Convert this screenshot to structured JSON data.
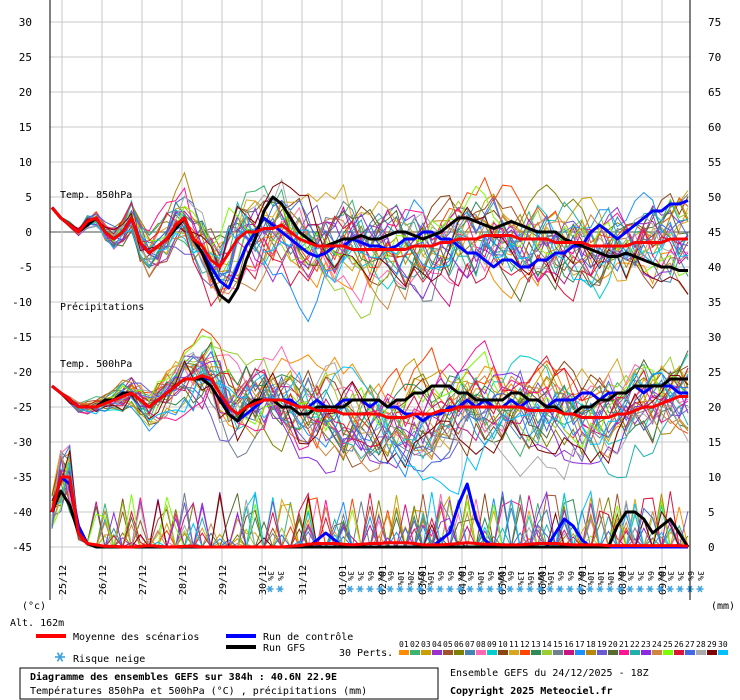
{
  "chart_data": {
    "type": "line",
    "left_axis": {
      "unit": "(°c)",
      "ticks": [
        30,
        25,
        20,
        15,
        10,
        5,
        0,
        -5,
        -10,
        -15,
        -20,
        -25,
        -30,
        -35,
        -40,
        -45
      ],
      "ylim": [
        -45,
        30
      ]
    },
    "right_axis": {
      "unit": "(mm)",
      "ticks": [
        75,
        70,
        65,
        60,
        55,
        50,
        45,
        40,
        35,
        30,
        25,
        20,
        15,
        10,
        5,
        0
      ],
      "ylim": [
        0,
        75
      ]
    },
    "x_ticks": [
      "25/12",
      "26/12",
      "27/12",
      "28/12",
      "29/12",
      "30/12",
      "31/12",
      "01/01",
      "02/01",
      "03/01",
      "04/01",
      "05/01",
      "06/01",
      "07/01",
      "08/01",
      "09/01"
    ],
    "panel_labels": [
      "Temp. 850hPa",
      "Précipitations",
      "Temp. 500hPa"
    ],
    "altitude": "Alt. 162m",
    "snow_risk": {
      "labels": [
        "3%",
        "3%",
        "3%",
        "3%",
        "6%",
        "6%",
        "6%",
        "10%",
        "20%",
        "23%",
        "16%",
        "6%",
        "6%",
        "6%",
        "6%",
        "10%",
        "6%",
        "10%",
        "6%",
        "13%",
        "16%",
        "10%",
        "16%",
        "6%",
        "6%",
        "6%",
        "10%",
        "10%",
        "10%",
        "6%",
        "3%",
        "3%",
        "6%",
        "6%",
        "3%",
        "3%",
        "6%",
        "3%"
      ],
      "x_start": 0.2,
      "x_step": 0.25,
      "x_skip_after": 1,
      "x_resume": 1.2
    },
    "series": [
      {
        "name": "Moyenne des scénarios",
        "color": "#ff0000",
        "t850": [
          3.5,
          2,
          1,
          0,
          1.5,
          2,
          0,
          -1,
          0,
          2,
          -1.5,
          -3,
          -2,
          -1,
          1,
          2,
          -1,
          -2,
          -4,
          -5,
          -3,
          -1,
          0,
          0,
          0.5,
          0.5,
          1,
          0,
          -1,
          -1.5,
          -2,
          -2,
          -2,
          -2,
          -2.5,
          -2.5,
          -2.5,
          -2.5,
          -2.5,
          -2.5,
          -2.5,
          -2,
          -2,
          -2,
          -1.5,
          -1.5,
          -1,
          -1,
          -1,
          -0.5,
          -0.5,
          -0.5,
          -0.5,
          -1,
          -1,
          -1,
          -1,
          -1.5,
          -1.5,
          -1.5,
          -1.5,
          -2,
          -2,
          -2,
          -2,
          -2,
          -1.5,
          -1.5,
          -1.5,
          -1.5,
          -1,
          -1,
          -1
        ],
        "t500": [
          -22,
          -23,
          -24,
          -25,
          -25,
          -25,
          -24.5,
          -24,
          -23.5,
          -23,
          -24,
          -25,
          -24,
          -23,
          -22,
          -21,
          -21,
          -20.5,
          -21,
          -23,
          -25,
          -26,
          -25,
          -24.5,
          -24,
          -24,
          -24,
          -24.5,
          -25,
          -25,
          -25.5,
          -25.5,
          -25.5,
          -26,
          -26,
          -26,
          -26,
          -26,
          -26.5,
          -26.5,
          -26.5,
          -26,
          -26,
          -26,
          -25.5,
          -25.5,
          -25,
          -25,
          -25,
          -25,
          -25,
          -25,
          -25,
          -25,
          -25.5,
          -25.5,
          -25.5,
          -25.5,
          -26,
          -26,
          -26.5,
          -26.5,
          -26.5,
          -26.5,
          -26,
          -26,
          -25.5,
          -25,
          -25,
          -24.5,
          -24,
          -23.5,
          -23.5
        ],
        "precip": [
          5,
          10,
          10,
          2,
          0.5,
          0.3,
          0.1,
          0.1,
          0,
          0,
          0.1,
          0.2,
          0.1,
          0,
          0,
          0.1,
          0.1,
          0,
          0,
          0,
          0,
          0,
          0,
          0,
          0,
          0,
          0,
          0.1,
          0.2,
          0.4,
          0.5,
          0.5,
          0.5,
          0.4,
          0.3,
          0.4,
          0.5,
          0.5,
          0.6,
          0.6,
          0.6,
          0.5,
          0.3,
          0.3,
          0.3,
          0.4,
          0.5,
          0.6,
          0.5,
          0.4,
          0.4,
          0.3,
          0.3,
          0.3,
          0.4,
          0.5,
          0.5,
          0.5,
          0.4,
          0.3,
          0.3,
          0.3,
          0.3,
          0.2,
          0.2,
          0.2,
          0.2,
          0.2,
          0.2,
          0.2,
          0.2,
          0.2,
          0.1
        ]
      },
      {
        "name": "Run de contrôle",
        "color": "#0000ff",
        "t850": [
          3.5,
          2,
          1,
          0,
          1,
          2,
          0,
          -1,
          0,
          2,
          -1.5,
          -3,
          -2,
          -1,
          0.5,
          2,
          -1,
          -3,
          -5,
          -7,
          -8,
          -5,
          -2,
          0,
          2,
          1,
          0,
          -1,
          -2,
          -3,
          -3.5,
          -3,
          -2,
          -2,
          -1,
          -1.5,
          -2,
          -2,
          -2.5,
          -2,
          -1,
          -1,
          0,
          0,
          -1,
          -1,
          -2,
          -3,
          -3,
          -4,
          -5,
          -4,
          -4,
          -5,
          -5,
          -4,
          -4,
          -3,
          -3,
          -2,
          -2,
          0,
          1,
          0,
          -1,
          0,
          1,
          2,
          3,
          3,
          4,
          4,
          4.5
        ],
        "t500": [
          -22,
          -23,
          -24,
          -25,
          -25,
          -25,
          -24,
          -24,
          -23,
          -23,
          -24,
          -25,
          -24,
          -23,
          -22,
          -21,
          -21,
          -21,
          -21,
          -23,
          -26,
          -27,
          -26,
          -25,
          -24,
          -24,
          -24,
          -24,
          -25,
          -25,
          -24,
          -25,
          -25,
          -24,
          -24,
          -24,
          -25,
          -24,
          -25,
          -25,
          -26,
          -26,
          -27,
          -26,
          -26,
          -25,
          -25,
          -24,
          -25,
          -24,
          -25,
          -25,
          -24,
          -25,
          -24,
          -24,
          -25,
          -24,
          -24,
          -24,
          -23,
          -23,
          -24,
          -23,
          -23,
          -23,
          -22,
          -23,
          -22,
          -22,
          -22,
          -23,
          -23
        ],
        "precip": [
          5,
          10,
          9,
          3,
          0.5,
          0.2,
          0,
          0,
          0,
          0,
          0,
          0,
          0,
          0,
          0,
          0,
          0,
          0,
          0,
          0,
          0,
          0,
          0,
          0,
          0,
          0,
          0,
          0,
          0,
          0,
          1,
          2,
          1,
          0,
          0,
          0,
          0,
          0,
          0,
          0,
          0,
          0,
          0,
          0,
          1,
          2,
          6,
          9,
          4,
          1,
          0,
          0,
          0,
          0,
          0,
          0,
          0,
          2,
          4,
          3,
          1,
          0,
          0,
          0,
          0,
          0,
          0,
          0,
          0,
          0,
          0,
          0,
          0
        ]
      },
      {
        "name": "Run GFS",
        "color": "#000000",
        "t850": [
          3.5,
          2,
          1,
          0,
          1,
          2,
          0,
          -1,
          0,
          2,
          -1.5,
          -3,
          -2,
          -1,
          0.5,
          2,
          -1,
          -3,
          -6,
          -9,
          -10,
          -8,
          -4,
          -1,
          3,
          5,
          4,
          2,
          0,
          -1,
          -2,
          -2,
          -1.5,
          -1,
          -1,
          -0.5,
          -1,
          -1,
          -0.5,
          0,
          0,
          -0.5,
          -1,
          -0.5,
          0,
          1,
          2,
          2,
          1.5,
          1,
          0.5,
          1,
          1.5,
          1,
          0.5,
          0,
          0,
          0,
          -1,
          -1.5,
          -2,
          -2.5,
          -3,
          -3.5,
          -3.5,
          -3,
          -3.5,
          -4,
          -4.5,
          -5,
          -5,
          -5.5,
          -5.5
        ],
        "t500": [
          -22,
          -23,
          -24,
          -25,
          -25,
          -25,
          -24,
          -24,
          -23,
          -23,
          -24,
          -25,
          -24,
          -23,
          -22,
          -21,
          -21,
          -21,
          -22,
          -24,
          -26,
          -27,
          -25,
          -24,
          -24,
          -24,
          -25,
          -25,
          -26,
          -26,
          -25,
          -25,
          -25,
          -25,
          -24,
          -24,
          -24,
          -24,
          -25,
          -24,
          -24,
          -23,
          -23,
          -22,
          -22,
          -22,
          -23,
          -23,
          -24,
          -24,
          -24,
          -24,
          -23,
          -23,
          -24,
          -24,
          -25,
          -25,
          -26,
          -26,
          -25,
          -25,
          -24,
          -24,
          -23,
          -23,
          -22,
          -22,
          -22,
          -22,
          -21,
          -21,
          -21
        ],
        "precip": [
          5,
          8,
          6,
          2,
          0.5,
          0,
          0,
          0,
          0,
          0,
          0,
          0,
          0,
          0,
          0,
          0,
          0,
          0,
          0,
          0,
          0,
          0,
          0,
          0,
          0,
          0,
          0,
          0,
          0,
          0,
          0,
          0,
          0,
          0,
          0,
          0,
          0,
          0,
          0,
          0,
          0,
          0,
          0,
          0,
          0,
          0,
          0,
          0,
          0,
          0,
          0,
          0,
          0,
          0,
          0,
          0,
          0,
          0,
          0,
          0,
          0,
          0,
          0,
          0,
          3,
          5,
          5,
          4,
          2,
          3,
          4,
          2,
          0
        ]
      }
    ],
    "perturbations_label": "30 Perts.",
    "perturbation_ids": [
      "01",
      "02",
      "03",
      "04",
      "05",
      "06",
      "07",
      "08",
      "09",
      "10",
      "11",
      "12",
      "13",
      "14",
      "15",
      "16",
      "17",
      "18",
      "19",
      "20",
      "21",
      "22",
      "23",
      "24",
      "25",
      "26",
      "27",
      "28",
      "29",
      "30"
    ],
    "perturbation_colors": [
      "#ff8c00",
      "#3cb371",
      "#c8a000",
      "#9932cc",
      "#a0522d",
      "#808000",
      "#4682b4",
      "#ff69b4",
      "#00ced1",
      "#8b4513",
      "#daa520",
      "#ff4500",
      "#2e8b57",
      "#9acd32",
      "#708090",
      "#c71585",
      "#1e90ff",
      "#b8860b",
      "#6a5acd",
      "#556b2f",
      "#ff1493",
      "#20b2aa",
      "#8a2be2",
      "#cd853f",
      "#7cfc00",
      "#dc143c",
      "#4169e1",
      "#a9a9a9",
      "#800000",
      "#00bfff"
    ]
  },
  "legend": {
    "mean_label": "Moyenne des scénarios",
    "control_label": "Run de contrôle",
    "gfs_label": "Run GFS",
    "snow_label": "Risque neige"
  },
  "footer": {
    "title": "Diagramme des ensembles GEFS sur 384h : 40.6N 22.9E",
    "subtitle": "Températures 850hPa et 500hPa (°C) , précipitations (mm)",
    "run_info": "Ensemble GEFS du 24/12/2025 - 18Z",
    "copyright": "Copyright 2025 Meteociel.fr"
  }
}
